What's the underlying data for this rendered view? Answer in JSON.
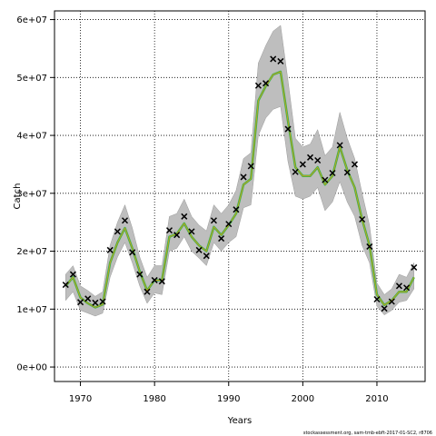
{
  "chart_data": {
    "type": "line",
    "xlabel": "Years",
    "ylabel": "Catch",
    "footnote": "stockassessment.org, sam-tmb-ebft-2017-01-SC2, r8706",
    "xlim": [
      1966.5,
      2016.5
    ],
    "ylim": [
      -2500000,
      61500000
    ],
    "x_ticks": [
      1970,
      1980,
      1990,
      2000,
      2010
    ],
    "y_ticks": [
      0,
      10000000,
      20000000,
      30000000,
      40000000,
      50000000,
      60000000
    ],
    "y_tick_labels": [
      "0e+00",
      "1e+07",
      "2e+07",
      "3e+07",
      "4e+07",
      "5e+07",
      "6e+07"
    ],
    "grid": true,
    "years": [
      1968,
      1969,
      1970,
      1971,
      1972,
      1973,
      1974,
      1975,
      1976,
      1977,
      1978,
      1979,
      1980,
      1981,
      1982,
      1983,
      1984,
      1985,
      1986,
      1987,
      1988,
      1989,
      1990,
      1991,
      1992,
      1993,
      1994,
      1995,
      1996,
      1997,
      1998,
      1999,
      2000,
      2001,
      2002,
      2003,
      2004,
      2005,
      2006,
      2007,
      2008,
      2009,
      2010,
      2011,
      2012,
      2013,
      2014,
      2015
    ],
    "series": [
      {
        "values": [
          14000000,
          15500000,
          12000000,
          11000000,
          10300000,
          10800000,
          18000000,
          21500000,
          24000000,
          20500000,
          16500000,
          13200000,
          15000000,
          15000000,
          22500000,
          23000000,
          24800000,
          22500000,
          21000000,
          20000000,
          24200000,
          22800000,
          24500000,
          26500000,
          31500000,
          32500000,
          46000000,
          48500000,
          50500000,
          51000000,
          42500000,
          34500000,
          33000000,
          33000000,
          34500000,
          31500000,
          33000000,
          38000000,
          34000000,
          31000000,
          25500000,
          21000000,
          12500000,
          10700000,
          11500000,
          13000000,
          13000000,
          15500000
        ],
        "lower": [
          11500000,
          13000000,
          9800000,
          9300000,
          8800000,
          9300000,
          15500000,
          19000000,
          21500000,
          18000000,
          14000000,
          11000000,
          12800000,
          12500000,
          20000000,
          20500000,
          22500000,
          20000000,
          18800000,
          17500000,
          21500000,
          20000000,
          21500000,
          22500000,
          27500000,
          28000000,
          40000000,
          43000000,
          44500000,
          45000000,
          35500000,
          29500000,
          29000000,
          29500000,
          31000000,
          27000000,
          28500000,
          32000000,
          28500000,
          26000000,
          21000000,
          18000000,
          10500000,
          9000000,
          9800000,
          11200000,
          11500000,
          13500000
        ],
        "upper": [
          16000000,
          17500000,
          14000000,
          13200000,
          12200000,
          13000000,
          21000000,
          25000000,
          28000000,
          24000000,
          19000000,
          15500000,
          17500000,
          17500000,
          26000000,
          26500000,
          29000000,
          26000000,
          24500000,
          23500000,
          28000000,
          26500000,
          28000000,
          30500000,
          36000000,
          37000000,
          52500000,
          55500000,
          58000000,
          59000000,
          49500000,
          39500000,
          38000000,
          38500000,
          41000000,
          36500000,
          38000000,
          44000000,
          39500000,
          36000000,
          30000000,
          24500000,
          14500000,
          12500000,
          13500000,
          16000000,
          15500000,
          18000000
        ],
        "color": "#3cb44b"
      }
    ],
    "observations": [
      {
        "x": 1968,
        "y": 14200000
      },
      {
        "x": 1969,
        "y": 16000000
      },
      {
        "x": 1970,
        "y": 11200000
      },
      {
        "x": 1971,
        "y": 11800000
      },
      {
        "x": 1972,
        "y": 11100000
      },
      {
        "x": 1973,
        "y": 11300000
      },
      {
        "x": 1974,
        "y": 20200000
      },
      {
        "x": 1975,
        "y": 23400000
      },
      {
        "x": 1976,
        "y": 25300000
      },
      {
        "x": 1977,
        "y": 19800000
      },
      {
        "x": 1978,
        "y": 16000000
      },
      {
        "x": 1979,
        "y": 13000000
      },
      {
        "x": 1980,
        "y": 15000000
      },
      {
        "x": 1981,
        "y": 14800000
      },
      {
        "x": 1982,
        "y": 23600000
      },
      {
        "x": 1983,
        "y": 22800000
      },
      {
        "x": 1984,
        "y": 26000000
      },
      {
        "x": 1985,
        "y": 23400000
      },
      {
        "x": 1986,
        "y": 20200000
      },
      {
        "x": 1987,
        "y": 19200000
      },
      {
        "x": 1988,
        "y": 25300000
      },
      {
        "x": 1989,
        "y": 22200000
      },
      {
        "x": 1990,
        "y": 24700000
      },
      {
        "x": 1991,
        "y": 27200000
      },
      {
        "x": 1992,
        "y": 32800000
      },
      {
        "x": 1993,
        "y": 34700000
      },
      {
        "x": 1994,
        "y": 48600000
      },
      {
        "x": 1995,
        "y": 49000000
      },
      {
        "x": 1996,
        "y": 53200000
      },
      {
        "x": 1997,
        "y": 52800000
      },
      {
        "x": 1998,
        "y": 41100000
      },
      {
        "x": 1999,
        "y": 33700000
      },
      {
        "x": 2000,
        "y": 35000000
      },
      {
        "x": 2001,
        "y": 36200000
      },
      {
        "x": 2002,
        "y": 35700000
      },
      {
        "x": 2003,
        "y": 32300000
      },
      {
        "x": 2004,
        "y": 33500000
      },
      {
        "x": 2005,
        "y": 38300000
      },
      {
        "x": 2006,
        "y": 33600000
      },
      {
        "x": 2007,
        "y": 35000000
      },
      {
        "x": 2008,
        "y": 25500000
      },
      {
        "x": 2009,
        "y": 20800000
      },
      {
        "x": 2010,
        "y": 11700000
      },
      {
        "x": 2011,
        "y": 10100000
      },
      {
        "x": 2012,
        "y": 11300000
      },
      {
        "x": 2013,
        "y": 14000000
      },
      {
        "x": 2014,
        "y": 13700000
      },
      {
        "x": 2015,
        "y": 17200000
      }
    ],
    "band_color": "#bebebe",
    "marker": "x"
  }
}
